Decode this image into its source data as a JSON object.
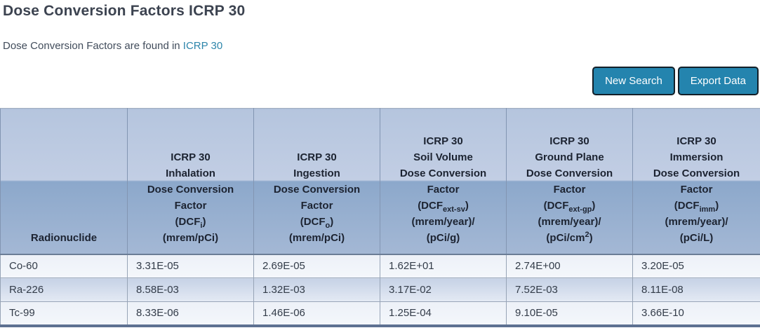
{
  "page": {
    "title": "Dose Conversion Factors ICRP 30",
    "intro_text": "Dose Conversion Factors are found in ",
    "intro_link_label": "ICRP 30"
  },
  "actions": {
    "new_search_label": "New Search",
    "export_data_label": "Export Data"
  },
  "colors": {
    "title_text": "#3c4350",
    "link": "#2e86ab",
    "button_bg": "#2484ae",
    "button_border": "#131f28",
    "button_text": "#ffffff",
    "header_gradient_top": "#b5c5de",
    "header_gradient_mid_light": "#c2cee4",
    "header_gradient_mid_dark": "#8ca8cb",
    "header_gradient_bottom": "#a4b8d5",
    "header_text": "#1c2331",
    "row_light_bg": "#f2f5fa",
    "row_dark_bg": "#d3dded",
    "cell_border": "#97a4b6",
    "table_bottom_bar": "#5e7191"
  },
  "table": {
    "columns": [
      {
        "id": "radionuclide",
        "lines": [
          "Radionuclide"
        ]
      },
      {
        "id": "inhalation-dcf",
        "lines": [
          "ICRP 30",
          "Inhalation",
          "Dose Conversion",
          "Factor",
          "(DCF_{i})",
          "(mrem/pCi)"
        ]
      },
      {
        "id": "ingestion-dcf",
        "lines": [
          "ICRP 30",
          "Ingestion",
          "Dose Conversion",
          "Factor",
          "(DCF_{o})",
          "(mrem/pCi)"
        ]
      },
      {
        "id": "soil-volume-dcf",
        "lines": [
          "ICRP 30",
          "Soil Volume",
          "Dose Conversion",
          "Factor",
          "(DCF_{ext-sv})",
          "(mrem/year)/",
          "(pCi/g)"
        ]
      },
      {
        "id": "ground-plane-dcf",
        "lines": [
          "ICRP 30",
          "Ground Plane",
          "Dose Conversion",
          "Factor",
          "(DCF_{ext-gp})",
          "(mrem/year)/",
          "(pCi/cm^{2})"
        ]
      },
      {
        "id": "immersion-dcf",
        "lines": [
          "ICRP 30",
          "Immersion",
          "Dose Conversion",
          "Factor",
          "(DCF_{imm})",
          "(mrem/year)/",
          "(pCi/L)"
        ]
      }
    ],
    "rows": [
      [
        "Co-60",
        "3.31E-05",
        "2.69E-05",
        "1.62E+01",
        "2.74E+00",
        "3.20E-05"
      ],
      [
        "Ra-226",
        "8.58E-03",
        "1.32E-03",
        "3.17E-02",
        "7.52E-03",
        "8.11E-08"
      ],
      [
        "Tc-99",
        "8.33E-06",
        "1.46E-06",
        "1.25E-04",
        "9.10E-05",
        "3.66E-10"
      ]
    ]
  }
}
